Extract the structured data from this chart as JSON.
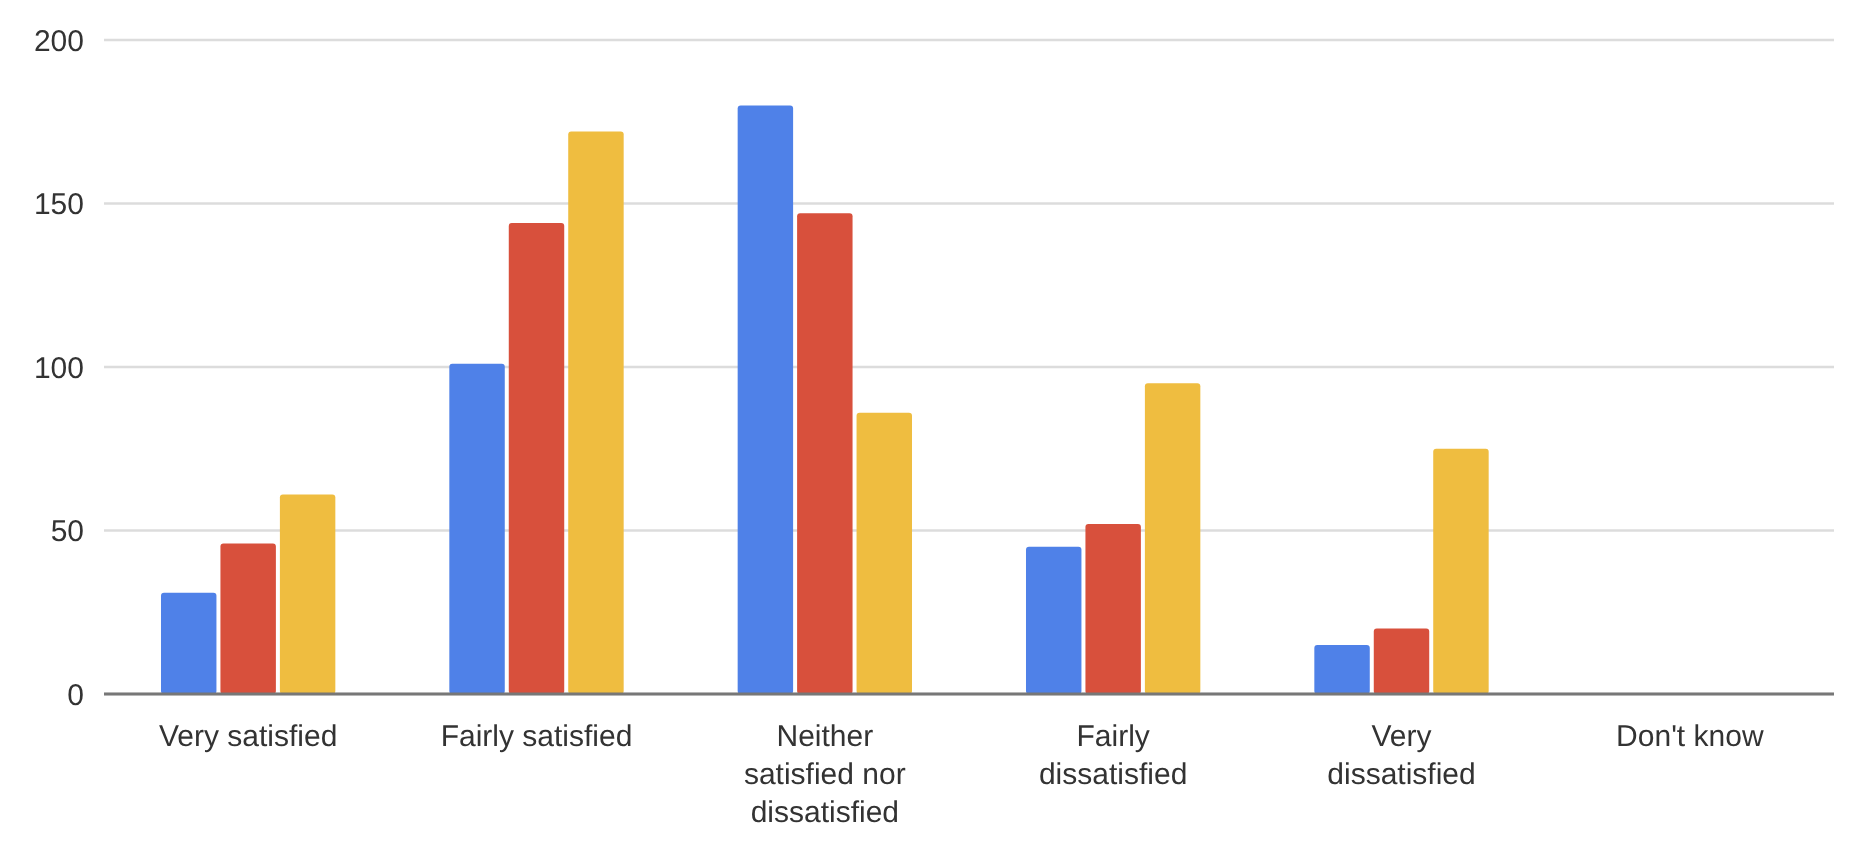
{
  "chart_data": {
    "type": "bar",
    "categories": [
      "Very satisfied",
      "Fairly satisfied",
      "Neither satisfied nor dissatisfied",
      "Fairly dissatisfied",
      "Very dissatisfied",
      "Don't know"
    ],
    "series": [
      {
        "color": "#4f81e8",
        "values": [
          31,
          101,
          180,
          45,
          15,
          0
        ]
      },
      {
        "color": "#d8503c",
        "values": [
          46,
          144,
          147,
          52,
          20,
          0
        ]
      },
      {
        "color": "#efbd40",
        "values": [
          61,
          172,
          86,
          95,
          75,
          0
        ]
      }
    ],
    "ylim": [
      0,
      200
    ],
    "yticks": [
      0,
      50,
      100,
      150,
      200
    ],
    "grid": "y"
  }
}
